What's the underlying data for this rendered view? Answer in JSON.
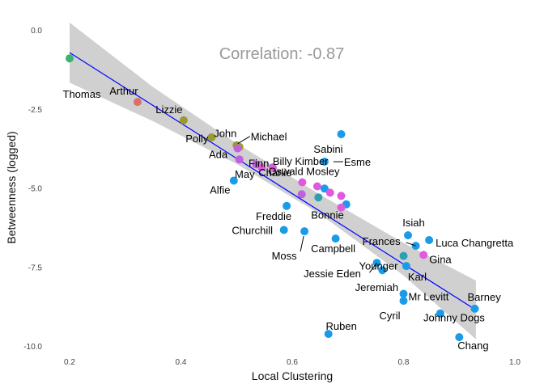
{
  "chart_data": {
    "type": "scatter",
    "title": "",
    "annotation": "Correlation: -0.87",
    "xlabel": "Local Clustering",
    "ylabel": "Betweenness (logged)",
    "xlim": [
      0.2,
      1.0
    ],
    "ylim": [
      -10.0,
      0.0
    ],
    "xticks": [
      "0.2",
      "0.4",
      "0.6",
      "0.8",
      "1.0"
    ],
    "yticks": [
      "0.0",
      "-2.5",
      "-5.0",
      "-7.5",
      "-10.0"
    ],
    "xtick_values": [
      0.2,
      0.4,
      0.6,
      0.8,
      1.0
    ],
    "ytick_values": [
      0.0,
      -2.5,
      -5.0,
      -7.5,
      -10.0
    ],
    "grid": false,
    "regression_line": {
      "x": [
        0.2,
        0.93
      ],
      "y": [
        -0.72,
        -8.86
      ],
      "color": "#0000ff"
    },
    "confidence_band": {
      "x": [
        0.2,
        0.35,
        0.5,
        0.65,
        0.8,
        0.93
      ],
      "upper": [
        0.23,
        -1.81,
        -3.59,
        -5.21,
        -6.74,
        -7.93
      ],
      "lower": [
        -1.67,
        -2.89,
        -4.24,
        -5.83,
        -7.77,
        -9.79
      ],
      "color": "#c8c8c8"
    },
    "colors": {
      "green": "#3cb371",
      "red": "#d9706a",
      "olive": "#9a9a30",
      "purple": "#c060e0",
      "magenta": "#e05ae0",
      "blue": "#1a9be8",
      "teal": "#2c9fb2"
    },
    "points": [
      {
        "name": "Thomas",
        "x": 0.2,
        "y": -0.9,
        "color": "green"
      },
      {
        "name": "Arthur",
        "x": 0.322,
        "y": -2.28,
        "color": "red"
      },
      {
        "name": "Lizzie",
        "x": 0.405,
        "y": -2.86,
        "color": "olive"
      },
      {
        "name": "Polly",
        "x": 0.455,
        "y": -3.4,
        "color": "olive"
      },
      {
        "name": "John",
        "x": 0.5,
        "y": -3.65,
        "color": "olive"
      },
      {
        "name": "Michael",
        "x": 0.505,
        "y": -3.7,
        "color": "olive"
      },
      {
        "name": "Ada",
        "x": 0.502,
        "y": -3.75,
        "color": "purple"
      },
      {
        "name": "Finn",
        "x": 0.505,
        "y": -4.1,
        "color": "purple"
      },
      {
        "name": "May",
        "x": 0.535,
        "y": -4.25,
        "color": "purple"
      },
      {
        "name": "Billy Kimber",
        "x": 0.545,
        "y": -4.35,
        "color": "magenta"
      },
      {
        "name": "Charlie",
        "x": 0.565,
        "y": -4.35,
        "color": "magenta"
      },
      {
        "name": "Alfie",
        "x": 0.495,
        "y": -4.77,
        "color": "blue"
      },
      {
        "name": "Sabini",
        "x": 0.688,
        "y": -3.3,
        "color": "blue"
      },
      {
        "name": "Esme",
        "x": 0.658,
        "y": -4.17,
        "color": "blue"
      },
      {
        "name": "Oswald Mosley",
        "x": 0.618,
        "y": -4.82,
        "color": "magenta"
      },
      {
        "name": "",
        "x": 0.645,
        "y": -4.95,
        "color": "magenta"
      },
      {
        "name": "",
        "x": 0.658,
        "y": -5.02,
        "color": "blue"
      },
      {
        "name": "",
        "x": 0.668,
        "y": -5.15,
        "color": "magenta"
      },
      {
        "name": "",
        "x": 0.617,
        "y": -5.2,
        "color": "purple"
      },
      {
        "name": "",
        "x": 0.647,
        "y": -5.3,
        "color": "teal"
      },
      {
        "name": "",
        "x": 0.688,
        "y": -5.25,
        "color": "magenta"
      },
      {
        "name": "",
        "x": 0.697,
        "y": -5.52,
        "color": "blue"
      },
      {
        "name": "Bonnie",
        "x": 0.688,
        "y": -5.62,
        "color": "magenta"
      },
      {
        "name": "Freddie",
        "x": 0.59,
        "y": -5.57,
        "color": "blue"
      },
      {
        "name": "Churchill",
        "x": 0.585,
        "y": -6.33,
        "color": "blue"
      },
      {
        "name": "Moss",
        "x": 0.622,
        "y": -6.37,
        "color": "blue"
      },
      {
        "name": "Campbell",
        "x": 0.678,
        "y": -6.6,
        "color": "blue"
      },
      {
        "name": "Isiah",
        "x": 0.808,
        "y": -6.5,
        "color": "blue"
      },
      {
        "name": "Frances",
        "x": 0.822,
        "y": -6.83,
        "color": "blue"
      },
      {
        "name": "Luca Changretta",
        "x": 0.846,
        "y": -6.65,
        "color": "blue"
      },
      {
        "name": "Younger",
        "x": 0.8,
        "y": -7.15,
        "color": "teal"
      },
      {
        "name": "Gina",
        "x": 0.836,
        "y": -7.12,
        "color": "magenta"
      },
      {
        "name": "Jessie Eden",
        "x": 0.752,
        "y": -7.37,
        "color": "blue"
      },
      {
        "name": "Jeremiah",
        "x": 0.762,
        "y": -7.6,
        "color": "blue"
      },
      {
        "name": "Karl",
        "x": 0.805,
        "y": -7.47,
        "color": "blue"
      },
      {
        "name": "Mr Levitt",
        "x": 0.8,
        "y": -8.35,
        "color": "blue"
      },
      {
        "name": "Cyril",
        "x": 0.8,
        "y": -8.57,
        "color": "blue"
      },
      {
        "name": "Barney",
        "x": 0.928,
        "y": -8.82,
        "color": "blue"
      },
      {
        "name": "Johnny Dogs",
        "x": 0.866,
        "y": -8.97,
        "color": "blue"
      },
      {
        "name": "Ruben",
        "x": 0.665,
        "y": -9.62,
        "color": "blue"
      },
      {
        "name": "Chang",
        "x": 0.9,
        "y": -9.72,
        "color": "blue"
      }
    ]
  }
}
